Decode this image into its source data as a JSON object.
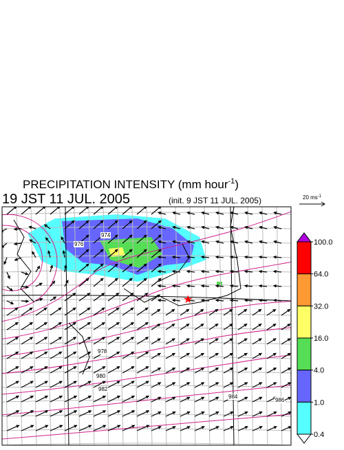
{
  "header": {
    "title": "PRECIPITATION INTENSITY (mm hour",
    "title_exponent": "-1",
    "title_close": ")",
    "time": "19 JST 11 JUL. 2005",
    "init": "(init. 9 JST 11 JUL. 2005)"
  },
  "vector_scale": {
    "label": "20 ms",
    "exponent": "-1"
  },
  "colorbar": {
    "colors": [
      "#b000e0",
      "#ff0000",
      "#ff9933",
      "#ffff66",
      "#55dd55",
      "#6666ff",
      "#55ffff",
      "#ffffff"
    ],
    "ticks": [
      {
        "value": 100,
        "label": "100.0"
      },
      {
        "value": 64,
        "label": "64.0"
      },
      {
        "value": 32,
        "label": "32.0"
      },
      {
        "value": 16,
        "label": "16.0"
      },
      {
        "value": 4,
        "label": "4.0"
      },
      {
        "value": 1,
        "label": "1.0"
      },
      {
        "value": 0.4,
        "label": "0.4"
      }
    ]
  },
  "contour_labels": [
    "974",
    "976",
    "978",
    "980",
    "982",
    "984",
    "986"
  ]
}
